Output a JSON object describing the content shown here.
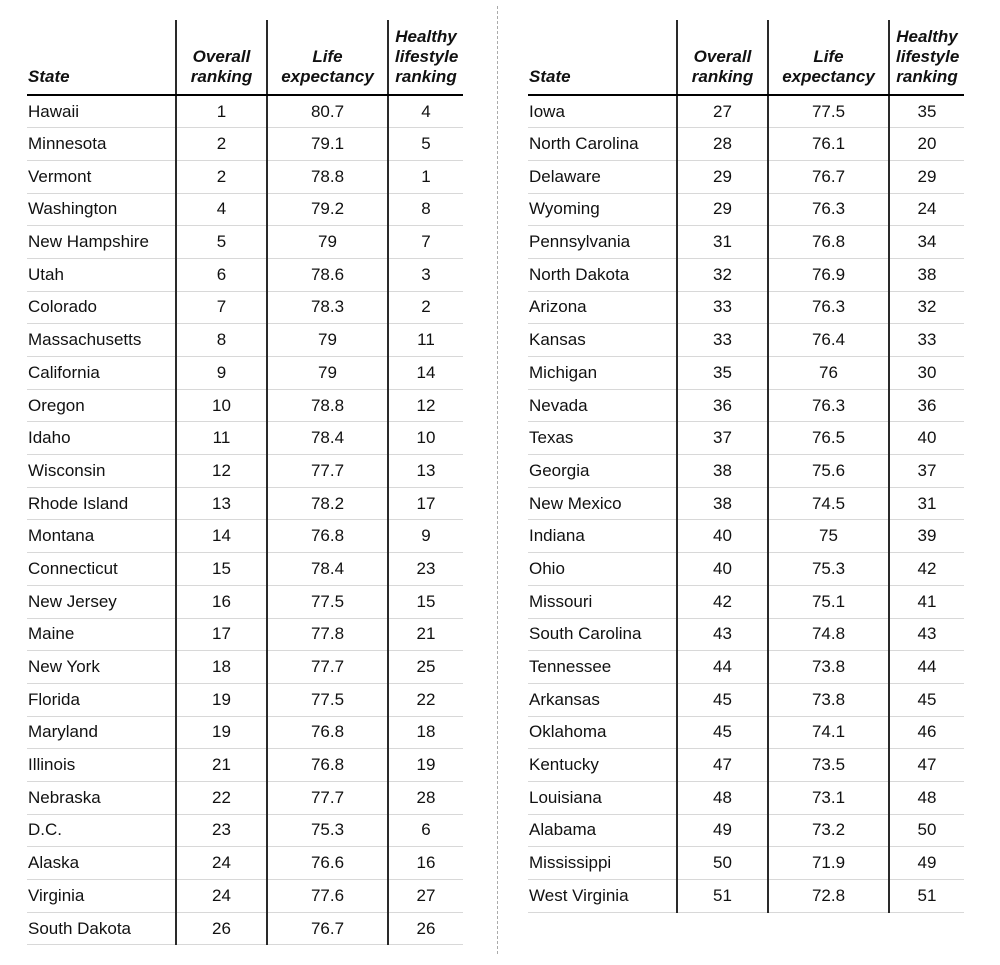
{
  "chart_data": {
    "type": "table",
    "title": "",
    "columns": [
      "State",
      "Overall ranking",
      "Life expectancy",
      "Healthy lifestyle ranking"
    ],
    "left_rows": [
      [
        "Hawaii",
        1,
        80.7,
        4
      ],
      [
        "Minnesota",
        2,
        79.1,
        5
      ],
      [
        "Vermont",
        2,
        78.8,
        1
      ],
      [
        "Washington",
        4,
        79.2,
        8
      ],
      [
        "New Hampshire",
        5,
        79,
        7
      ],
      [
        "Utah",
        6,
        78.6,
        3
      ],
      [
        "Colorado",
        7,
        78.3,
        2
      ],
      [
        "Massachusetts",
        8,
        79,
        11
      ],
      [
        "California",
        9,
        79,
        14
      ],
      [
        "Oregon",
        10,
        78.8,
        12
      ],
      [
        "Idaho",
        11,
        78.4,
        10
      ],
      [
        "Wisconsin",
        12,
        77.7,
        13
      ],
      [
        "Rhode Island",
        13,
        78.2,
        17
      ],
      [
        "Montana",
        14,
        76.8,
        9
      ],
      [
        "Connecticut",
        15,
        78.4,
        23
      ],
      [
        "New Jersey",
        16,
        77.5,
        15
      ],
      [
        "Maine",
        17,
        77.8,
        21
      ],
      [
        "New York",
        18,
        77.7,
        25
      ],
      [
        "Florida",
        19,
        77.5,
        22
      ],
      [
        "Maryland",
        19,
        76.8,
        18
      ],
      [
        "Illinois",
        21,
        76.8,
        19
      ],
      [
        "Nebraska",
        22,
        77.7,
        28
      ],
      [
        "D.C.",
        23,
        75.3,
        6
      ],
      [
        "Alaska",
        24,
        76.6,
        16
      ],
      [
        "Virginia",
        24,
        77.6,
        27
      ],
      [
        "South Dakota",
        26,
        76.7,
        26
      ]
    ],
    "right_rows": [
      [
        "Iowa",
        27,
        77.5,
        35
      ],
      [
        "North Carolina",
        28,
        76.1,
        20
      ],
      [
        "Delaware",
        29,
        76.7,
        29
      ],
      [
        "Wyoming",
        29,
        76.3,
        24
      ],
      [
        "Pennsylvania",
        31,
        76.8,
        34
      ],
      [
        "North Dakota",
        32,
        76.9,
        38
      ],
      [
        "Arizona",
        33,
        76.3,
        32
      ],
      [
        "Kansas",
        33,
        76.4,
        33
      ],
      [
        "Michigan",
        35,
        76,
        30
      ],
      [
        "Nevada",
        36,
        76.3,
        36
      ],
      [
        "Texas",
        37,
        76.5,
        40
      ],
      [
        "Georgia",
        38,
        75.6,
        37
      ],
      [
        "New Mexico",
        38,
        74.5,
        31
      ],
      [
        "Indiana",
        40,
        75,
        39
      ],
      [
        "Ohio",
        40,
        75.3,
        42
      ],
      [
        "Missouri",
        42,
        75.1,
        41
      ],
      [
        "South Carolina",
        43,
        74.8,
        43
      ],
      [
        "Tennessee",
        44,
        73.8,
        44
      ],
      [
        "Arkansas",
        45,
        73.8,
        45
      ],
      [
        "Oklahoma",
        45,
        74.1,
        46
      ],
      [
        "Kentucky",
        47,
        73.5,
        47
      ],
      [
        "Louisiana",
        48,
        73.1,
        48
      ],
      [
        "Alabama",
        49,
        73.2,
        50
      ],
      [
        "Mississippi",
        50,
        71.9,
        49
      ],
      [
        "West Virginia",
        51,
        72.8,
        51
      ]
    ]
  },
  "colors": {
    "background": "#ffffff",
    "text": "#111111",
    "header_rule": "#000000",
    "column_rule": "#2a2a2a",
    "row_rule": "#d8d8d8",
    "divider": "#ababab"
  }
}
